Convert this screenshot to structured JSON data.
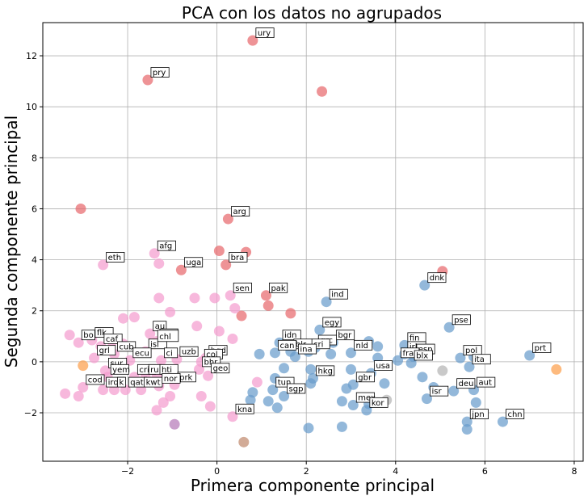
{
  "chart_data": {
    "type": "scatter",
    "title": "PCA con los datos no agrupados",
    "xlabel": "Primera componente principal",
    "ylabel": "Segunda componente principal",
    "xlim": [
      -3.9,
      8.2
    ],
    "ylim": [
      -3.9,
      13.3
    ],
    "xticks": [
      -2,
      0,
      2,
      4,
      6,
      8
    ],
    "xtick_labels": [
      "−2",
      "0",
      "2",
      "4",
      "6",
      "8"
    ],
    "yticks": [
      -2,
      0,
      2,
      4,
      6,
      8,
      10,
      12
    ],
    "yticks_labels": [
      "−2",
      "0",
      "2",
      "4",
      "6",
      "8",
      "10",
      "12"
    ],
    "grid": true,
    "colors": {
      "red": "#e8696e",
      "blue": "#6a9ccc",
      "pink": "#f49ccf",
      "orange": "#fca04c",
      "gray": "#b4b4b4",
      "purple": "#b57ab8",
      "brown": "#c08a6f",
      "highlight": "#e41a1c"
    },
    "points": [
      {
        "x": 0.8,
        "y": 12.6,
        "color": "red",
        "label": "ury"
      },
      {
        "x": -1.55,
        "y": 11.05,
        "color": "red",
        "label": "pry"
      },
      {
        "x": 2.35,
        "y": 10.6,
        "color": "red",
        "label": ""
      },
      {
        "x": -3.05,
        "y": 6.0,
        "color": "red",
        "label": ""
      },
      {
        "x": 0.25,
        "y": 5.6,
        "color": "red",
        "label": "arg"
      },
      {
        "x": 0.05,
        "y": 4.35,
        "color": "red",
        "label": ""
      },
      {
        "x": 0.65,
        "y": 4.3,
        "color": "red",
        "label": ""
      },
      {
        "x": 0.2,
        "y": 3.8,
        "color": "red",
        "label": "bra"
      },
      {
        "x": -0.8,
        "y": 3.6,
        "color": "red",
        "label": "uga"
      },
      {
        "x": 5.05,
        "y": 3.55,
        "color": "red",
        "label": ""
      },
      {
        "x": 1.1,
        "y": 2.6,
        "color": "red",
        "label": "pak"
      },
      {
        "x": 1.15,
        "y": 2.2,
        "color": "red",
        "label": ""
      },
      {
        "x": 1.65,
        "y": 1.9,
        "color": "red",
        "label": ""
      },
      {
        "x": 0.55,
        "y": 1.8,
        "color": "red",
        "label": ""
      },
      {
        "x": -1.4,
        "y": 4.25,
        "color": "pink",
        "label": "afg"
      },
      {
        "x": -1.3,
        "y": 3.85,
        "color": "pink",
        "label": ""
      },
      {
        "x": -2.55,
        "y": 3.8,
        "color": "pink",
        "label": "eth"
      },
      {
        "x": 0.3,
        "y": 2.6,
        "color": "pink",
        "label": "sen"
      },
      {
        "x": -1.3,
        "y": 2.5,
        "color": "pink",
        "label": ""
      },
      {
        "x": -0.5,
        "y": 2.5,
        "color": "pink",
        "label": ""
      },
      {
        "x": -0.05,
        "y": 2.5,
        "color": "pink",
        "label": ""
      },
      {
        "x": 0.4,
        "y": 2.1,
        "color": "pink",
        "label": ""
      },
      {
        "x": -1.05,
        "y": 1.95,
        "color": "pink",
        "label": ""
      },
      {
        "x": -2.1,
        "y": 1.7,
        "color": "pink",
        "label": ""
      },
      {
        "x": -1.85,
        "y": 1.75,
        "color": "pink",
        "label": ""
      },
      {
        "x": -1.5,
        "y": 1.1,
        "color": "pink",
        "label": "au"
      },
      {
        "x": -1.35,
        "y": 0.8,
        "color": "pink",
        "label": "per"
      },
      {
        "x": -0.45,
        "y": 1.4,
        "color": "pink",
        "label": ""
      },
      {
        "x": 0.05,
        "y": 1.2,
        "color": "pink",
        "label": ""
      },
      {
        "x": 0.35,
        "y": 0.9,
        "color": "pink",
        "label": ""
      },
      {
        "x": -3.3,
        "y": 1.05,
        "color": "pink",
        "label": ""
      },
      {
        "x": -3.1,
        "y": 0.75,
        "color": "pink",
        "label": "bo"
      },
      {
        "x": -2.8,
        "y": 0.85,
        "color": "pink",
        "label": "flk"
      },
      {
        "x": -2.6,
        "y": 0.6,
        "color": "pink",
        "label": "caf"
      },
      {
        "x": -2.35,
        "y": 0.8,
        "color": "pink",
        "label": ""
      },
      {
        "x": -2.1,
        "y": 0.7,
        "color": "pink",
        "label": ""
      },
      {
        "x": -2.3,
        "y": 0.3,
        "color": "pink",
        "label": "cub"
      },
      {
        "x": -1.6,
        "y": 0.4,
        "color": "pink",
        "label": "isl"
      },
      {
        "x": -2.75,
        "y": 0.15,
        "color": "pink",
        "label": "grl"
      },
      {
        "x": -1.95,
        "y": 0.05,
        "color": "pink",
        "label": "ecu"
      },
      {
        "x": -1.25,
        "y": 0.05,
        "color": "pink",
        "label": "ci"
      },
      {
        "x": -0.9,
        "y": 0.1,
        "color": "pink",
        "label": "uzb"
      },
      {
        "x": -0.25,
        "y": 0.15,
        "color": "pink",
        "label": "bgd"
      },
      {
        "x": -0.35,
        "y": 0.0,
        "color": "pink",
        "label": "col"
      },
      {
        "x": -0.4,
        "y": -0.3,
        "color": "pink",
        "label": "bhr"
      },
      {
        "x": -0.2,
        "y": -0.55,
        "color": "pink",
        "label": "geo"
      },
      {
        "x": -2.5,
        "y": -0.35,
        "color": "pink",
        "label": "sur"
      },
      {
        "x": -2.45,
        "y": -0.6,
        "color": "pink",
        "label": "yem"
      },
      {
        "x": -1.85,
        "y": -0.6,
        "color": "pink",
        "label": "cri"
      },
      {
        "x": -1.6,
        "y": -0.6,
        "color": "pink",
        "label": "ru"
      },
      {
        "x": -1.35,
        "y": -0.6,
        "color": "pink",
        "label": "hti"
      },
      {
        "x": -0.95,
        "y": -0.9,
        "color": "pink",
        "label": "prk"
      },
      {
        "x": -3.0,
        "y": -1.0,
        "color": "pink",
        "label": "cod"
      },
      {
        "x": -2.55,
        "y": -1.1,
        "color": "pink",
        "label": "irq"
      },
      {
        "x": -2.3,
        "y": -1.1,
        "color": "pink",
        "label": "k"
      },
      {
        "x": -2.05,
        "y": -1.1,
        "color": "pink",
        "label": "qat"
      },
      {
        "x": -1.7,
        "y": -1.1,
        "color": "pink",
        "label": "kwt"
      },
      {
        "x": -1.3,
        "y": -0.95,
        "color": "pink",
        "label": "nor"
      },
      {
        "x": -3.4,
        "y": -1.25,
        "color": "pink",
        "label": ""
      },
      {
        "x": -3.1,
        "y": -1.35,
        "color": "pink",
        "label": ""
      },
      {
        "x": -1.2,
        "y": -1.6,
        "color": "pink",
        "label": ""
      },
      {
        "x": -1.05,
        "y": -1.35,
        "color": "pink",
        "label": ""
      },
      {
        "x": 0.9,
        "y": -0.8,
        "color": "pink",
        "label": ""
      },
      {
        "x": -0.35,
        "y": -1.35,
        "color": "pink",
        "label": ""
      },
      {
        "x": -0.15,
        "y": -1.75,
        "color": "pink",
        "label": ""
      },
      {
        "x": 0.35,
        "y": -2.15,
        "color": "pink",
        "label": "kna"
      },
      {
        "x": -1.35,
        "y": -1.9,
        "color": "pink",
        "label": ""
      },
      {
        "x": -1.4,
        "y": 0.7,
        "color": "highlight",
        "label": "chl"
      },
      {
        "x": -3.0,
        "y": -0.15,
        "color": "orange",
        "label": ""
      },
      {
        "x": 7.6,
        "y": -0.3,
        "color": "orange",
        "label": ""
      },
      {
        "x": -0.95,
        "y": -2.45,
        "color": "purple",
        "label": ""
      },
      {
        "x": 0.6,
        "y": -3.15,
        "color": "brown",
        "label": ""
      },
      {
        "x": 4.65,
        "y": 3.0,
        "color": "blue",
        "label": "dnk"
      },
      {
        "x": 2.45,
        "y": 2.35,
        "color": "blue",
        "label": "ind"
      },
      {
        "x": 5.2,
        "y": 1.35,
        "color": "blue",
        "label": "pse"
      },
      {
        "x": 2.3,
        "y": 1.25,
        "color": "blue",
        "label": "egy"
      },
      {
        "x": 2.6,
        "y": 0.75,
        "color": "blue",
        "label": "bgr"
      },
      {
        "x": 1.4,
        "y": 0.75,
        "color": "blue",
        "label": "idn"
      },
      {
        "x": 3.4,
        "y": 0.8,
        "color": "blue",
        "label": ""
      },
      {
        "x": 4.2,
        "y": 0.65,
        "color": "blue",
        "label": "fin"
      },
      {
        "x": 3.6,
        "y": 0.6,
        "color": "blue",
        "label": ""
      },
      {
        "x": 2.2,
        "y": 0.55,
        "color": "blue",
        "label": "grc"
      },
      {
        "x": 2.05,
        "y": 0.4,
        "color": "blue",
        "label": "cri"
      },
      {
        "x": 3.0,
        "y": 0.35,
        "color": "blue",
        "label": "nld"
      },
      {
        "x": 1.65,
        "y": 0.4,
        "color": "blue",
        "label": "blr"
      },
      {
        "x": 1.3,
        "y": 0.35,
        "color": "blue",
        "label": "can"
      },
      {
        "x": 0.95,
        "y": 0.3,
        "color": "blue",
        "label": ""
      },
      {
        "x": 1.75,
        "y": 0.2,
        "color": "blue",
        "label": "ina"
      },
      {
        "x": 2.55,
        "y": 0.3,
        "color": "blue",
        "label": ""
      },
      {
        "x": 4.2,
        "y": 0.3,
        "color": "blue",
        "label": "irl"
      },
      {
        "x": 4.4,
        "y": 0.2,
        "color": "blue",
        "label": "esp"
      },
      {
        "x": 5.45,
        "y": 0.15,
        "color": "blue",
        "label": "pol"
      },
      {
        "x": 5.75,
        "y": 0.2,
        "color": "blue",
        "label": ""
      },
      {
        "x": 7.0,
        "y": 0.25,
        "color": "blue",
        "label": "prt"
      },
      {
        "x": 3.6,
        "y": 0.15,
        "color": "blue",
        "label": ""
      },
      {
        "x": 4.05,
        "y": 0.05,
        "color": "blue",
        "label": "fra"
      },
      {
        "x": 4.35,
        "y": -0.05,
        "color": "blue",
        "label": "blx"
      },
      {
        "x": 5.65,
        "y": -0.2,
        "color": "blue",
        "label": "ita"
      },
      {
        "x": 3.0,
        "y": -0.3,
        "color": "blue",
        "label": ""
      },
      {
        "x": 3.45,
        "y": -0.45,
        "color": "blue",
        "label": "usa"
      },
      {
        "x": 1.5,
        "y": -0.25,
        "color": "blue",
        "label": ""
      },
      {
        "x": 2.1,
        "y": -0.3,
        "color": "blue",
        "label": ""
      },
      {
        "x": 2.15,
        "y": -0.65,
        "color": "blue",
        "label": "hkg"
      },
      {
        "x": 1.3,
        "y": -0.65,
        "color": "blue",
        "label": ""
      },
      {
        "x": 4.6,
        "y": -0.6,
        "color": "blue",
        "label": ""
      },
      {
        "x": 3.05,
        "y": -0.9,
        "color": "blue",
        "label": "gbr"
      },
      {
        "x": 3.75,
        "y": -0.85,
        "color": "blue",
        "label": ""
      },
      {
        "x": 1.25,
        "y": -1.1,
        "color": "blue",
        "label": "tun"
      },
      {
        "x": 1.5,
        "y": -1.35,
        "color": "blue",
        "label": "sgp"
      },
      {
        "x": 0.75,
        "y": -1.5,
        "color": "blue",
        "label": ""
      },
      {
        "x": 0.8,
        "y": -1.2,
        "color": "blue",
        "label": ""
      },
      {
        "x": 1.35,
        "y": -1.8,
        "color": "blue",
        "label": ""
      },
      {
        "x": 1.15,
        "y": -1.55,
        "color": "blue",
        "label": ""
      },
      {
        "x": 2.1,
        "y": -0.85,
        "color": "blue",
        "label": ""
      },
      {
        "x": 2.9,
        "y": -1.05,
        "color": "blue",
        "label": ""
      },
      {
        "x": 3.05,
        "y": -1.7,
        "color": "blue",
        "label": "mex"
      },
      {
        "x": 3.35,
        "y": -1.9,
        "color": "blue",
        "label": "kor"
      },
      {
        "x": 2.8,
        "y": -1.55,
        "color": "blue",
        "label": ""
      },
      {
        "x": 3.4,
        "y": -1.65,
        "color": "blue",
        "label": ""
      },
      {
        "x": 4.85,
        "y": -1.0,
        "color": "blue",
        "label": ""
      },
      {
        "x": 4.7,
        "y": -1.45,
        "color": "blue",
        "label": "isr"
      },
      {
        "x": 5.3,
        "y": -1.15,
        "color": "blue",
        "label": "deu"
      },
      {
        "x": 5.75,
        "y": -1.1,
        "color": "blue",
        "label": "aut"
      },
      {
        "x": 5.8,
        "y": -1.6,
        "color": "blue",
        "label": ""
      },
      {
        "x": 2.05,
        "y": -2.6,
        "color": "blue",
        "label": ""
      },
      {
        "x": 2.8,
        "y": -2.55,
        "color": "blue",
        "label": ""
      },
      {
        "x": 5.6,
        "y": -2.35,
        "color": "blue",
        "label": "jpn"
      },
      {
        "x": 5.6,
        "y": -2.65,
        "color": "blue",
        "label": ""
      },
      {
        "x": 6.4,
        "y": -2.35,
        "color": "blue",
        "label": "chn"
      },
      {
        "x": 5.05,
        "y": -0.35,
        "color": "gray",
        "label": ""
      },
      {
        "x": 3.8,
        "y": -1.5,
        "color": "gray",
        "label": ""
      }
    ]
  }
}
